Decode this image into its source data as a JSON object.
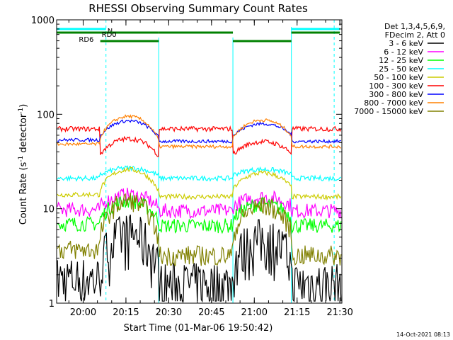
{
  "chart_data": {
    "type": "line",
    "title": "RHESSI Observing Summary Count Rates",
    "xlabel": "Start Time (01-Mar-06 19:50:42)",
    "ylabel_main": "Count Rate (s",
    "ylabel_sup1": "-1",
    "ylabel_mid": " detector",
    "ylabel_sup2": "-1",
    "ylabel_end": ")",
    "yscale": "log",
    "ylim": [
      1,
      1000
    ],
    "xlim": [
      "19:50:42",
      "21:30:42"
    ],
    "x_ticks": [
      "20:00",
      "20:15",
      "20:30",
      "20:45",
      "21:00",
      "21:15",
      "21:30"
    ],
    "y_ticks": [
      "1",
      "10",
      "100",
      "1000"
    ],
    "legend_header": [
      "Det 1,3,4,5,6,9,",
      "FDecim 2, Att 0"
    ],
    "timestamp": "14-Oct-2021 08:13",
    "flags": [
      {
        "label": "N",
        "color": "#00ffff"
      },
      {
        "label": "RD0",
        "color": "#008000"
      },
      {
        "label": "RD6",
        "color": "#008000"
      }
    ],
    "dashed_markers": [
      "20:08",
      "21:28"
    ],
    "series": [
      {
        "name": "3 - 6 keV",
        "color": "#000000"
      },
      {
        "name": "6 - 12 keV",
        "color": "#ff00ff"
      },
      {
        "name": "12 - 25 keV",
        "color": "#00ff00"
      },
      {
        "name": "25 - 50 keV",
        "color": "#00ffff"
      },
      {
        "name": "50 - 100 keV",
        "color": "#cccc00"
      },
      {
        "name": "100 - 300 keV",
        "color": "#ff0000"
      },
      {
        "name": "300 - 800 keV",
        "color": "#0000ff"
      },
      {
        "name": "800 - 7000 keV",
        "color": "#ff8000"
      },
      {
        "name": "7000 - 15000 keV",
        "color": "#808000"
      }
    ]
  }
}
